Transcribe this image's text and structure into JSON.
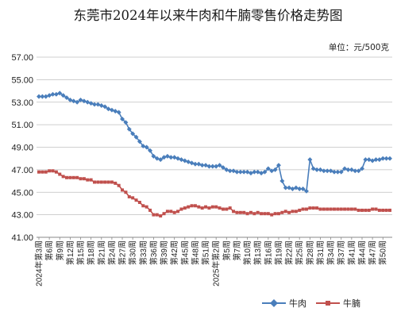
{
  "chart_data": {
    "type": "line",
    "title": "东莞市2024年以来牛肉和牛腩零售价格走势图",
    "unit_note": "单位：元/500克",
    "ylim": [
      41,
      57
    ],
    "yticks": [
      "41.00",
      "43.00",
      "45.00",
      "47.00",
      "49.00",
      "51.00",
      "53.00",
      "55.00",
      "57.00"
    ],
    "grid": true,
    "legend_position": "bottom-right",
    "x": [
      1,
      2,
      3,
      4,
      5,
      6,
      7,
      8,
      9,
      10,
      11,
      12,
      13,
      14,
      15,
      16,
      17,
      18,
      19,
      20,
      21,
      22,
      23,
      24,
      25,
      26,
      27,
      28,
      29,
      30,
      31,
      32,
      33,
      34,
      35,
      36,
      37,
      38,
      39,
      40,
      41,
      42,
      43,
      44,
      45,
      46,
      47,
      48,
      49,
      50,
      51,
      52,
      53,
      54,
      55,
      56,
      57,
      58,
      59,
      60,
      61,
      62,
      63,
      64,
      65,
      66,
      67,
      68,
      69,
      70,
      71,
      72,
      73,
      74,
      75,
      76,
      77,
      78,
      79,
      80,
      81,
      82,
      83,
      84,
      85,
      86,
      87,
      88,
      89,
      90,
      91,
      92,
      93,
      94,
      95,
      96,
      97,
      98,
      99,
      100,
      101,
      102
    ],
    "x_tick_labels": [
      "2024年第3周",
      "第6周",
      "第9周",
      "第12周",
      "第15周",
      "第18周",
      "第21周",
      "第24周",
      "第27周",
      "第30周",
      "第33周",
      "第36周",
      "第39周",
      "第42周",
      "第45周",
      "第48周",
      "第51周",
      "2025年第2周",
      "第5周",
      "第7周",
      "第10周",
      "第13周",
      "第16周",
      "第19周",
      "第22周",
      "第25周",
      "第28周",
      "第31周",
      "第34周",
      "第37周",
      "第41周",
      "第44周",
      "第47周",
      "第50周"
    ],
    "series": [
      {
        "name": "牛肉",
        "color": "#4a7ebb",
        "marker": "diamond",
        "values": [
          53.5,
          53.5,
          53.5,
          53.6,
          53.7,
          53.7,
          53.8,
          53.6,
          53.4,
          53.2,
          53.1,
          53.0,
          53.2,
          53.1,
          53.0,
          52.9,
          52.8,
          52.8,
          52.7,
          52.6,
          52.4,
          52.3,
          52.2,
          52.1,
          51.5,
          51.2,
          50.6,
          50.2,
          49.9,
          49.5,
          49.1,
          49.0,
          48.7,
          48.2,
          48.0,
          47.9,
          48.1,
          48.2,
          48.1,
          48.1,
          48.0,
          47.9,
          47.8,
          47.7,
          47.6,
          47.5,
          47.5,
          47.4,
          47.4,
          47.3,
          47.3,
          47.3,
          47.4,
          47.2,
          47.0,
          46.9,
          46.9,
          46.8,
          46.8,
          46.8,
          46.8,
          46.7,
          46.8,
          46.8,
          46.7,
          46.8,
          47.1,
          46.9,
          47.0,
          47.4,
          46.0,
          45.4,
          45.4,
          45.3,
          45.4,
          45.3,
          45.3,
          45.1,
          47.9,
          47.1,
          47.0,
          47.0,
          46.9,
          46.9,
          46.9,
          46.8,
          46.8,
          46.8,
          47.1,
          47.0,
          47.0,
          46.9,
          46.9,
          47.1,
          47.9,
          47.9,
          47.8,
          47.9,
          47.9,
          48.0,
          48.0,
          48.0
        ]
      },
      {
        "name": "牛腩",
        "color": "#c0504d",
        "marker": "square",
        "values": [
          46.8,
          46.8,
          46.8,
          46.9,
          46.9,
          46.8,
          46.6,
          46.4,
          46.3,
          46.3,
          46.3,
          46.3,
          46.2,
          46.2,
          46.1,
          46.1,
          45.9,
          45.9,
          45.9,
          45.9,
          45.9,
          45.9,
          45.8,
          45.6,
          45.2,
          45.0,
          44.6,
          44.5,
          44.3,
          44.1,
          43.8,
          43.7,
          43.4,
          43.0,
          43.0,
          42.9,
          43.1,
          43.3,
          43.3,
          43.2,
          43.3,
          43.5,
          43.6,
          43.7,
          43.8,
          43.8,
          43.7,
          43.6,
          43.7,
          43.6,
          43.7,
          43.7,
          43.6,
          43.5,
          43.5,
          43.6,
          43.3,
          43.2,
          43.2,
          43.2,
          43.1,
          43.2,
          43.1,
          43.2,
          43.1,
          43.1,
          43.1,
          43.0,
          43.1,
          43.1,
          43.2,
          43.3,
          43.2,
          43.3,
          43.3,
          43.4,
          43.5,
          43.5,
          43.6,
          43.6,
          43.6,
          43.5,
          43.5,
          43.5,
          43.5,
          43.5,
          43.5,
          43.5,
          43.5,
          43.5,
          43.5,
          43.5,
          43.4,
          43.4,
          43.4,
          43.4,
          43.5,
          43.5,
          43.4,
          43.4,
          43.4,
          43.4
        ]
      }
    ]
  }
}
